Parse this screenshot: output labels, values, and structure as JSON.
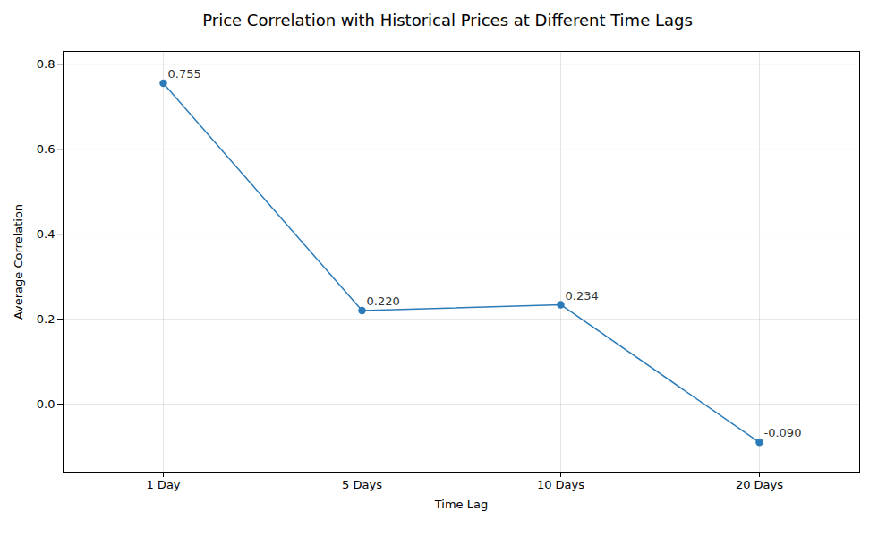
{
  "chart_data": {
    "type": "line",
    "title": "Price Correlation with Historical Prices at Different Time Lags",
    "xlabel": "Time Lag",
    "ylabel": "Average Correlation",
    "categories": [
      "1 Day",
      "5 Days",
      "10 Days",
      "20 Days"
    ],
    "values": [
      0.755,
      0.22,
      0.234,
      -0.09
    ],
    "value_labels": [
      "0.755",
      "0.220",
      "0.234",
      "-0.090"
    ],
    "data_labels": true,
    "color": "#2b7bb9",
    "marker": "circle",
    "ylim": [
      -0.16,
      0.83
    ],
    "yticks": [
      {
        "value": 0.0,
        "label": "0.0"
      },
      0.2,
      0.4,
      0.6,
      0.8
    ],
    "grid": true
  }
}
